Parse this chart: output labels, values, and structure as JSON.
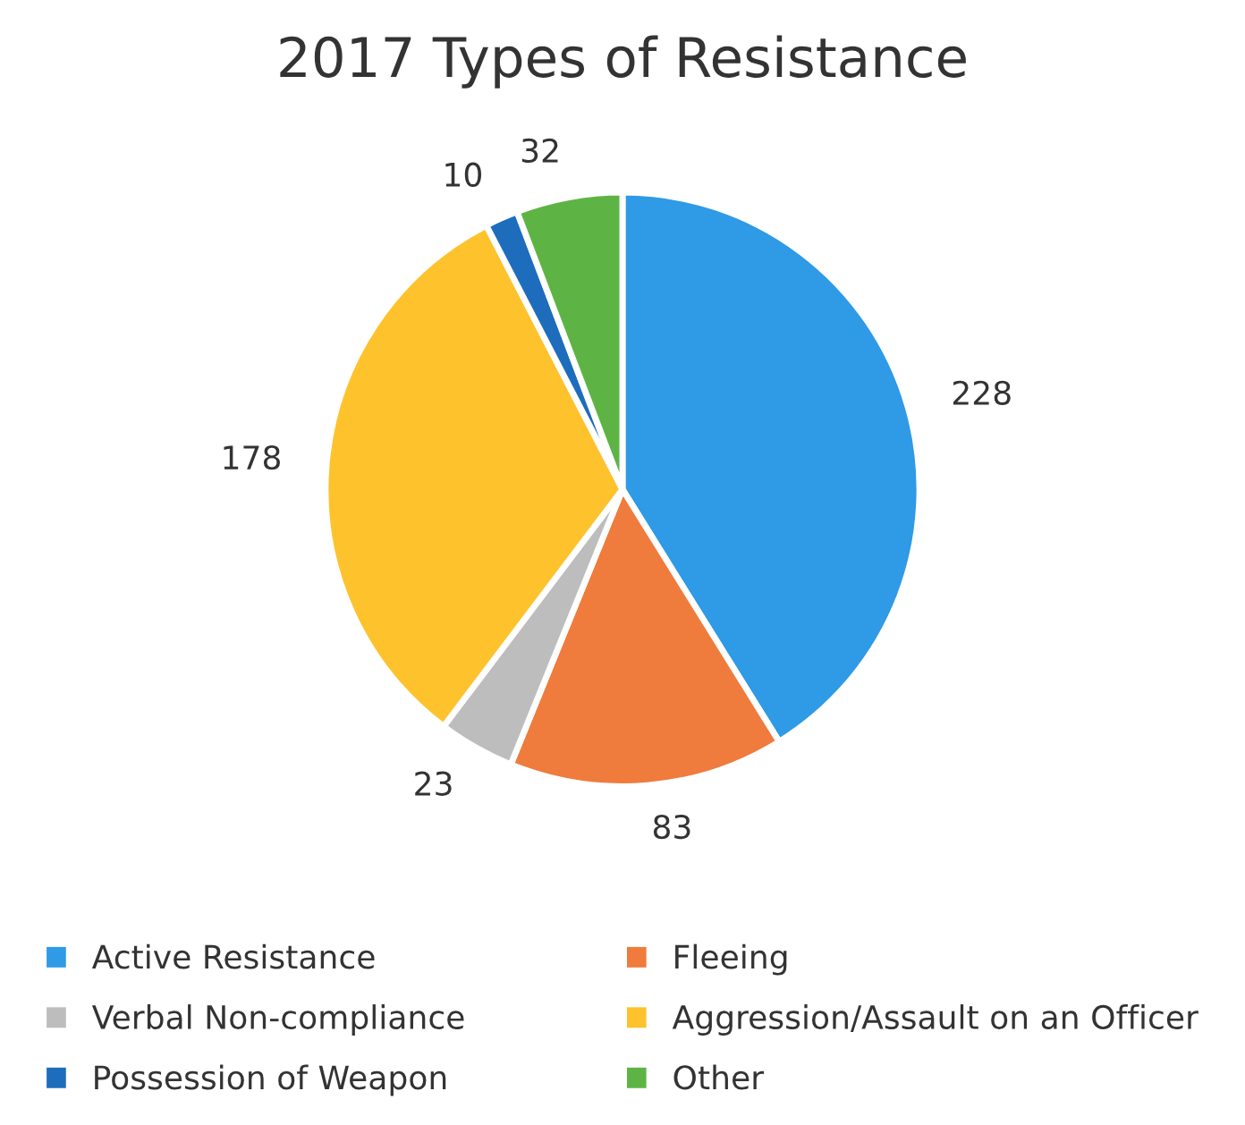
{
  "chart_data": {
    "type": "pie",
    "title": "2017 Types of Resistance",
    "categories": [
      "Active Resistance",
      "Fleeing",
      "Verbal Non-compliance",
      "Aggression/Assault on an Officer",
      "Possession of Weapon",
      "Other"
    ],
    "values": [
      228,
      83,
      23,
      178,
      10,
      32
    ],
    "colors": [
      "#2f9ae6",
      "#ef7b3d",
      "#bdbdbd",
      "#fec22c",
      "#1e6dbd",
      "#5db445"
    ],
    "data_labels": true,
    "legend": "bottom"
  }
}
